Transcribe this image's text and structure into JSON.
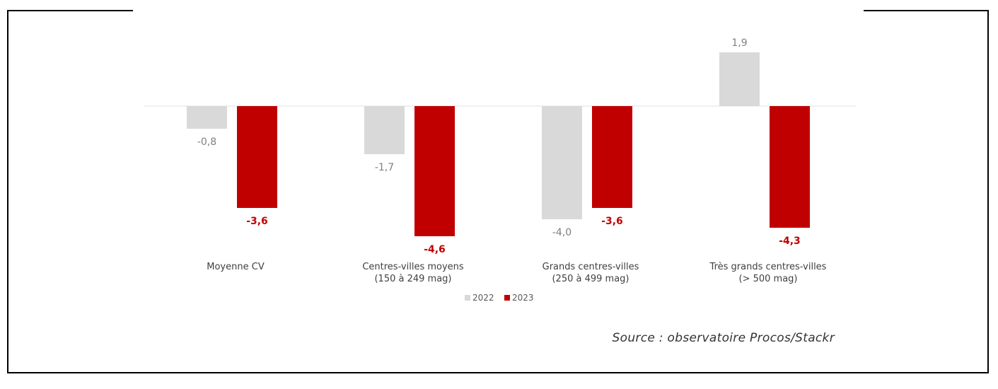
{
  "chart_data": {
    "type": "bar",
    "categories": [
      [
        "Moyenne CV"
      ],
      [
        "Centres-villes moyens",
        "(150 à 249 mag)"
      ],
      [
        "Grands centres-villes",
        "(250 à 499 mag)"
      ],
      [
        "Très grands centres-villes",
        "(> 500 mag)"
      ]
    ],
    "series": [
      {
        "name": "2022",
        "color": "#d9d9d9",
        "label_color": "#7f7f7f",
        "values": [
          -0.8,
          -1.7,
          -4.0,
          1.9
        ],
        "labels": [
          "-0,8",
          "-1,7",
          "-4,0",
          "1,9"
        ]
      },
      {
        "name": "2023",
        "color": "#c00000",
        "label_color": "#c00000",
        "values": [
          -3.6,
          -4.6,
          -3.6,
          -4.3
        ],
        "labels": [
          "-3,6",
          "-4,6",
          "-3,6",
          "-4,3"
        ]
      }
    ],
    "ylim": [
      -5,
      2.5
    ],
    "grid": false,
    "legend_position": "bottom-center",
    "title": "",
    "xlabel": "",
    "ylabel": ""
  },
  "source": "Source : observatoire Procos/Stackr"
}
